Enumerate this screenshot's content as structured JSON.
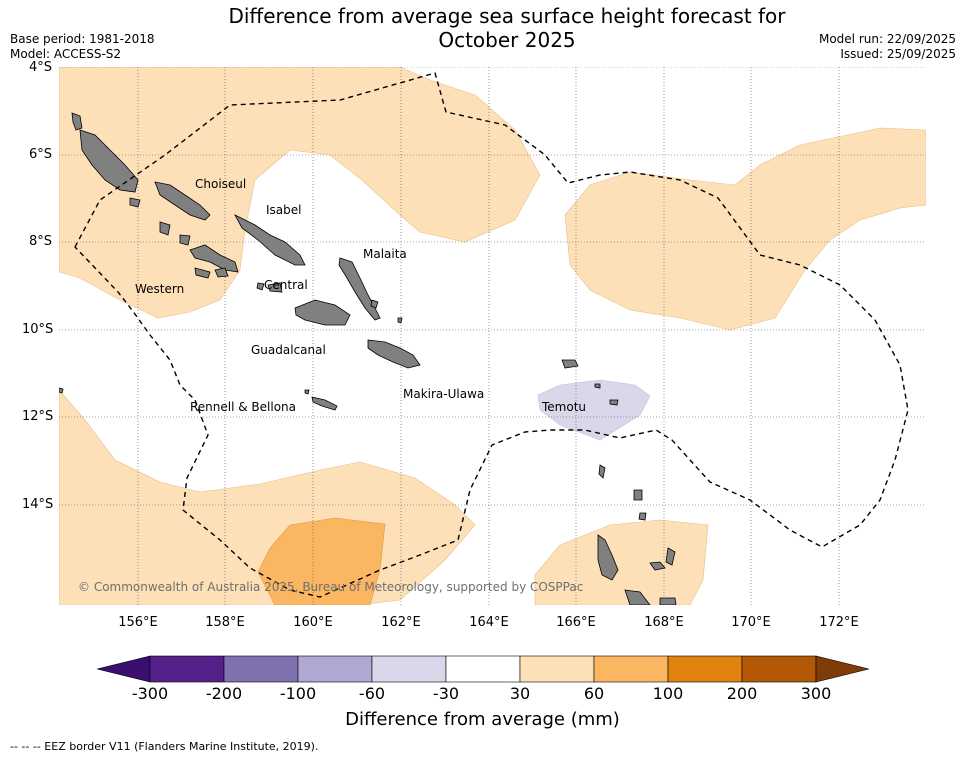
{
  "title_line1": "Difference from average sea surface height forecast for",
  "title_line2": "October 2025",
  "base_period": "Base period: 1981-2018",
  "model": "Model: ACCESS-S2",
  "model_run": "Model run: 22/09/2025",
  "issued": "Issued: 25/09/2025",
  "latitudes": [
    "4°S",
    "6°S",
    "8°S",
    "10°S",
    "12°S",
    "14°S"
  ],
  "longitudes": [
    "156°E",
    "158°E",
    "160°E",
    "162°E",
    "164°E",
    "166°E",
    "168°E",
    "170°E",
    "172°E"
  ],
  "regions": {
    "choiseul": "Choiseul",
    "isabel": "Isabel",
    "malaita": "Malaita",
    "western": "Western",
    "central": "Central",
    "guadalcanal": "Guadalcanal",
    "makira": "Makira-Ulawa",
    "rennell": "Rennell & Bellona",
    "temotu": "Temotu"
  },
  "copyright": "© Commonwealth of Australia 2025, Bureau of Meteorology, supported by COSPPac",
  "colorbar": {
    "ticks": [
      "-300",
      "-200",
      "-100",
      "-60",
      "-30",
      "30",
      "60",
      "100",
      "200",
      "300"
    ],
    "colors": [
      "#3b0f6f",
      "#56208b",
      "#8072ae",
      "#b0a8d2",
      "#d8d8ea",
      "#ffffff",
      "#fde0b8",
      "#fbb661",
      "#e0820f",
      "#b35806",
      "#7f3b08"
    ],
    "title": "Difference from average (mm)"
  },
  "legend_note": "--  --  -- EEZ border V11 (Flanders Marine Institute, 2019)."
}
